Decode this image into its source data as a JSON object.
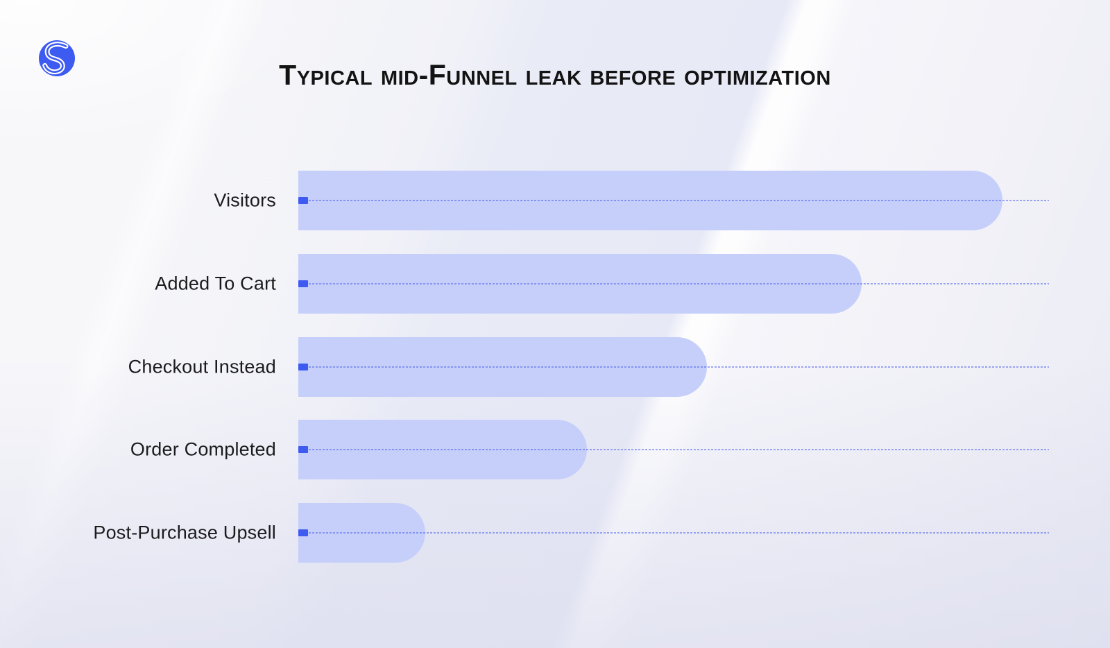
{
  "header": {
    "logo": {
      "icon": "s-curve-logo-icon",
      "color": "#3D5AF1"
    },
    "title": "Typical mid-Funnel leak before optimization"
  },
  "chart_data": {
    "type": "bar",
    "orientation": "horizontal",
    "title": "Typical mid-Funnel leak before optimization",
    "categories": [
      "Visitors",
      "Added To Cart",
      "Checkout Instead",
      "Order Completed",
      "Post-Purchase Upsell"
    ],
    "values_relative_pct": [
      100,
      80,
      58,
      41,
      18
    ],
    "value_note": "no numeric labels shown in image; values estimated from bar lengths relative to Visitors",
    "xlabel": "",
    "ylabel": "",
    "legend_shown": false,
    "layout": {
      "bars_start_flush_left": true,
      "bar_end_shape": "pill-rounded-right",
      "leader_lines": "dotted line from bar start to right edge of plot, one per category",
      "start_marker": "small solid blue rectangle at left end of each bar"
    }
  },
  "colors": {
    "bar_fill": "#C5CFFA",
    "marker": "#3D5AF1",
    "leader_line": "rgba(80,100,235,0.55)",
    "title_text": "#131313",
    "label_text": "#1B1B1D",
    "logo_blue": "#3D5AF1"
  }
}
